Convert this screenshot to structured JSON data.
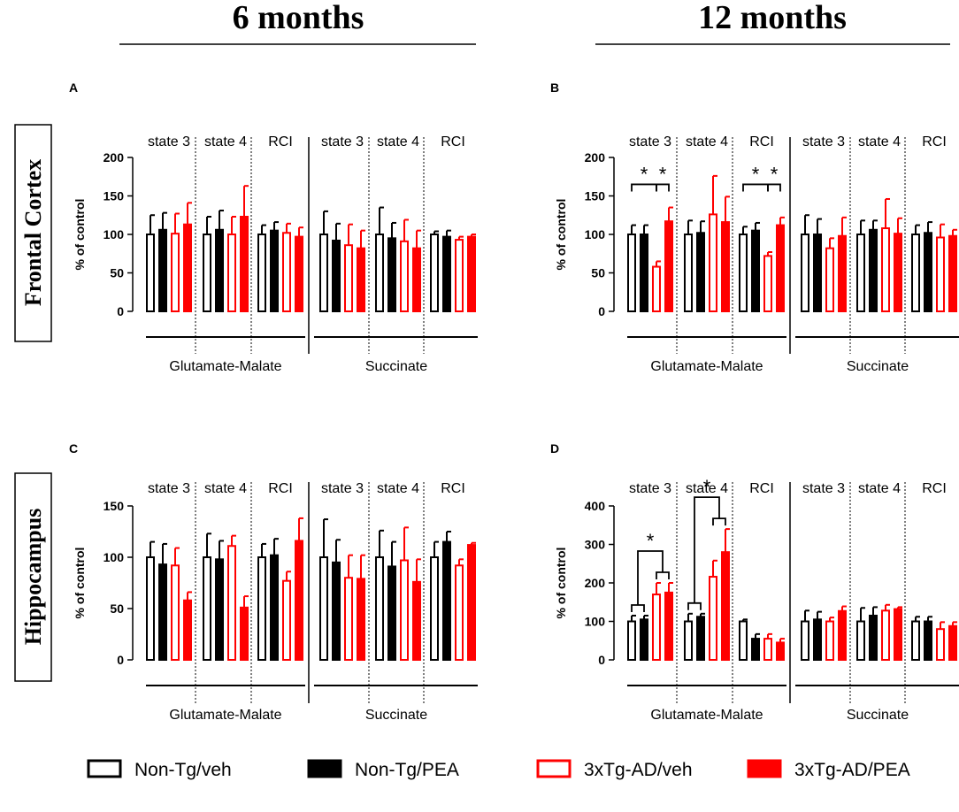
{
  "headers": {
    "col_left": "6 months",
    "col_right": "12 months",
    "row_top": "Frontal Cortex",
    "row_bottom": "Hippocampus"
  },
  "colors": {
    "black": "#000000",
    "red": "#ff0000"
  },
  "legend": [
    {
      "label": "Non-Tg/veh",
      "color": "#000000",
      "filled": false
    },
    {
      "label": "Non-Tg/PEA",
      "color": "#000000",
      "filled": true
    },
    {
      "label": "3xTg-AD/veh",
      "color": "#ff0000",
      "filled": false
    },
    {
      "label": "3xTg-AD/PEA",
      "color": "#ff0000",
      "filled": true
    }
  ],
  "chart_data": [
    {
      "id": "A",
      "type": "bar",
      "panel_label": "A",
      "ylabel": "% of control",
      "ylim": [
        0,
        200
      ],
      "yticks": [
        "0",
        "50",
        "100",
        "150",
        "200"
      ],
      "group_labels": [
        "state 3",
        "state 4",
        "RCI",
        "state 3",
        "state 4",
        "RCI"
      ],
      "substrates": [
        "Glutamate-Malate",
        "Succinate"
      ],
      "series_names": [
        "Non-Tg/veh",
        "Non-Tg/PEA",
        "3xTg-AD/veh",
        "3xTg-AD/PEA"
      ],
      "values": [
        [
          100,
          106,
          101,
          113
        ],
        [
          100,
          106,
          100,
          123
        ],
        [
          100,
          105,
          102,
          97
        ],
        [
          100,
          92,
          86,
          82
        ],
        [
          100,
          95,
          91,
          82
        ],
        [
          100,
          97,
          93,
          97
        ]
      ],
      "errors": [
        [
          25,
          22,
          26,
          28
        ],
        [
          23,
          25,
          23,
          40
        ],
        [
          12,
          11,
          12,
          12
        ],
        [
          30,
          22,
          27,
          23
        ],
        [
          35,
          20,
          28,
          23
        ],
        [
          4,
          8,
          4,
          3
        ]
      ],
      "significance": []
    },
    {
      "id": "B",
      "type": "bar",
      "panel_label": "B",
      "ylabel": "% of control",
      "ylim": [
        0,
        200
      ],
      "yticks": [
        "0",
        "50",
        "100",
        "150",
        "200"
      ],
      "group_labels": [
        "state 3",
        "state 4",
        "RCI",
        "state 3",
        "state 4",
        "RCI"
      ],
      "substrates": [
        "Glutamate-Malate",
        "Succinate"
      ],
      "series_names": [
        "Non-Tg/veh",
        "Non-Tg/PEA",
        "3xTg-AD/veh",
        "3xTg-AD/PEA"
      ],
      "values": [
        [
          100,
          100,
          58,
          117
        ],
        [
          100,
          102,
          126,
          116
        ],
        [
          100,
          105,
          72,
          112
        ],
        [
          100,
          100,
          82,
          98
        ],
        [
          100,
          106,
          108,
          101
        ],
        [
          100,
          102,
          96,
          98
        ]
      ],
      "errors": [
        [
          12,
          12,
          7,
          18
        ],
        [
          18,
          15,
          50,
          33
        ],
        [
          10,
          10,
          5,
          10
        ],
        [
          25,
          20,
          13,
          24
        ],
        [
          18,
          12,
          38,
          20
        ],
        [
          12,
          14,
          17,
          8
        ]
      ],
      "significance": [
        {
          "group": 0,
          "from": 0,
          "to": 2,
          "label": "*"
        },
        {
          "group": 0,
          "from": 2,
          "to": 3,
          "label": "*"
        },
        {
          "group": 2,
          "from": 0,
          "to": 2,
          "label": "*"
        },
        {
          "group": 2,
          "from": 2,
          "to": 3,
          "label": "*"
        }
      ]
    },
    {
      "id": "C",
      "type": "bar",
      "panel_label": "C",
      "ylabel": "% of control",
      "ylim": [
        0,
        150
      ],
      "yticks": [
        "0",
        "50",
        "100",
        "150"
      ],
      "group_labels": [
        "state 3",
        "state 4",
        "RCI",
        "state 3",
        "state 4",
        "RCI"
      ],
      "substrates": [
        "Glutamate-Malate",
        "Succinate"
      ],
      "series_names": [
        "Non-Tg/veh",
        "Non-Tg/PEA",
        "3xTg-AD/veh",
        "3xTg-AD/PEA"
      ],
      "values": [
        [
          100,
          93,
          92,
          58
        ],
        [
          100,
          98,
          111,
          51
        ],
        [
          100,
          102,
          77,
          116
        ],
        [
          100,
          95,
          80,
          79
        ],
        [
          100,
          91,
          97,
          76
        ],
        [
          100,
          115,
          92,
          112
        ]
      ],
      "errors": [
        [
          15,
          20,
          17,
          8
        ],
        [
          23,
          18,
          10,
          11
        ],
        [
          13,
          16,
          9,
          22
        ],
        [
          37,
          22,
          22,
          23
        ],
        [
          26,
          24,
          32,
          22
        ],
        [
          15,
          10,
          6,
          2
        ]
      ],
      "significance": []
    },
    {
      "id": "D",
      "type": "bar",
      "panel_label": "D",
      "ylabel": "% of control",
      "ylim": [
        0,
        400
      ],
      "yticks": [
        "0",
        "100",
        "200",
        "300",
        "400"
      ],
      "group_labels": [
        "state 3",
        "state 4",
        "RCI",
        "state 3",
        "state 4",
        "RCI"
      ],
      "substrates": [
        "Glutamate-Malate",
        "Succinate"
      ],
      "series_names": [
        "Non-Tg/veh",
        "Non-Tg/PEA",
        "3xTg-AD/veh",
        "3xTg-AD/PEA"
      ],
      "values": [
        [
          100,
          105,
          170,
          175
        ],
        [
          100,
          112,
          216,
          280
        ],
        [
          100,
          55,
          55,
          45
        ],
        [
          100,
          105,
          100,
          127
        ],
        [
          100,
          115,
          128,
          132
        ],
        [
          100,
          100,
          80,
          88
        ]
      ],
      "errors": [
        [
          15,
          10,
          30,
          25
        ],
        [
          20,
          8,
          42,
          60
        ],
        [
          5,
          12,
          12,
          10
        ],
        [
          28,
          20,
          10,
          12
        ],
        [
          35,
          22,
          15,
          5
        ],
        [
          12,
          12,
          18,
          10
        ]
      ],
      "significance": [
        {
          "group": 0,
          "from": 0,
          "to": 1,
          "label": ""
        },
        {
          "group": 0,
          "from": 2,
          "to": 3,
          "label": ""
        },
        {
          "group": 0,
          "from": 0,
          "to": 3,
          "label": "*"
        },
        {
          "group": 1,
          "from": 0,
          "to": 1,
          "label": ""
        },
        {
          "group": 1,
          "from": 2,
          "to": 3,
          "label": ""
        },
        {
          "group": 1,
          "from": 0,
          "to": 3,
          "label": "*"
        }
      ]
    }
  ]
}
